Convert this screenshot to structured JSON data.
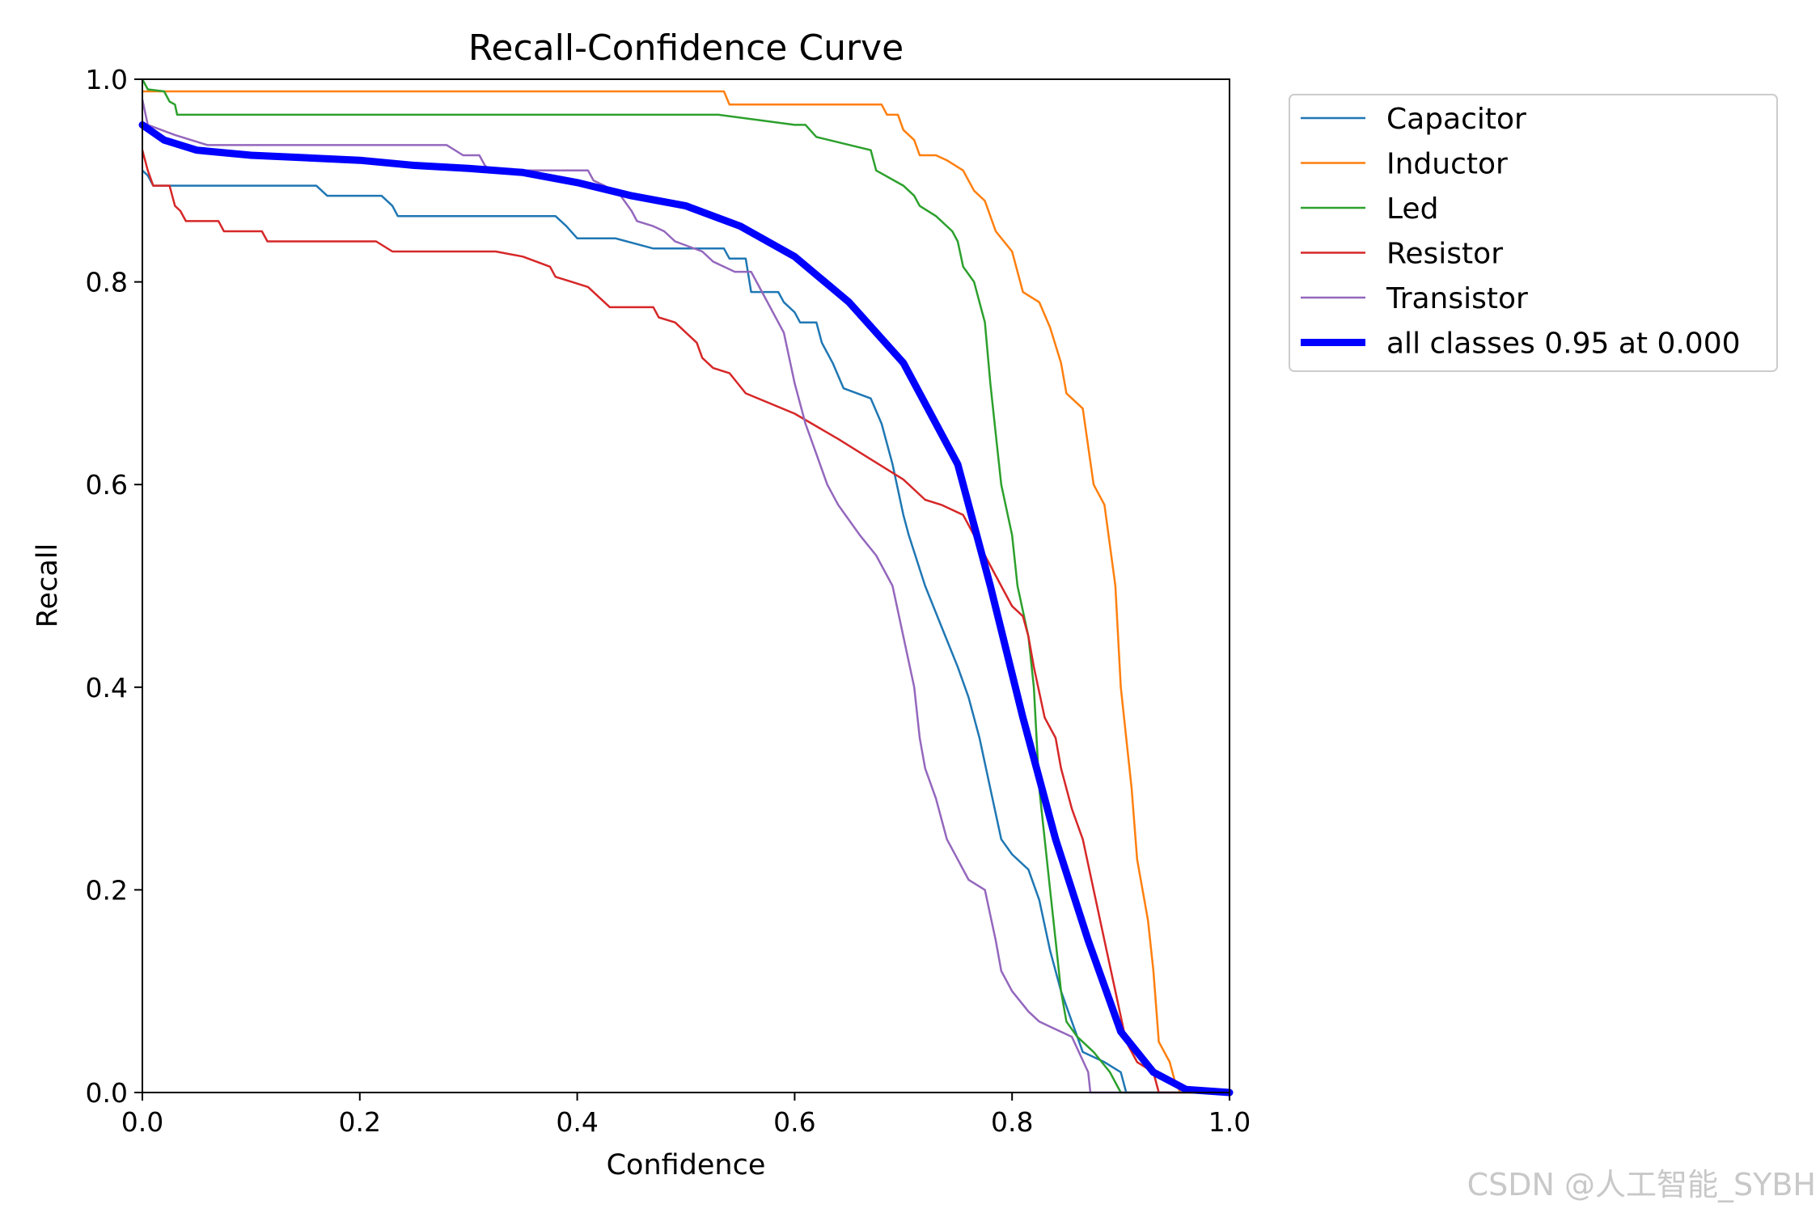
{
  "chart_data": {
    "type": "line",
    "title": "Recall-Confidence Curve",
    "xlabel": "Confidence",
    "ylabel": "Recall",
    "xlim": [
      0.0,
      1.0
    ],
    "ylim": [
      0.0,
      1.0
    ],
    "xticks": [
      "0.0",
      "0.2",
      "0.4",
      "0.6",
      "0.8",
      "1.0"
    ],
    "yticks": [
      "0.0",
      "0.2",
      "0.4",
      "0.6",
      "0.8",
      "1.0"
    ],
    "grid": false,
    "legend_position": "outside-top-right",
    "series": [
      {
        "name": "Capacitor",
        "color": "#1f77b4",
        "points": [
          [
            0,
            0.91
          ],
          [
            0.005,
            0.905
          ],
          [
            0.01,
            0.895
          ],
          [
            0.05,
            0.895
          ],
          [
            0.16,
            0.895
          ],
          [
            0.17,
            0.885
          ],
          [
            0.22,
            0.885
          ],
          [
            0.23,
            0.875
          ],
          [
            0.235,
            0.865
          ],
          [
            0.38,
            0.865
          ],
          [
            0.39,
            0.855
          ],
          [
            0.4,
            0.843
          ],
          [
            0.435,
            0.843
          ],
          [
            0.47,
            0.833
          ],
          [
            0.535,
            0.833
          ],
          [
            0.54,
            0.823
          ],
          [
            0.555,
            0.823
          ],
          [
            0.56,
            0.79
          ],
          [
            0.585,
            0.79
          ],
          [
            0.59,
            0.78
          ],
          [
            0.6,
            0.77
          ],
          [
            0.605,
            0.76
          ],
          [
            0.62,
            0.76
          ],
          [
            0.625,
            0.74
          ],
          [
            0.635,
            0.72
          ],
          [
            0.645,
            0.695
          ],
          [
            0.67,
            0.685
          ],
          [
            0.68,
            0.66
          ],
          [
            0.69,
            0.62
          ],
          [
            0.7,
            0.57
          ],
          [
            0.705,
            0.55
          ],
          [
            0.72,
            0.5
          ],
          [
            0.735,
            0.46
          ],
          [
            0.75,
            0.42
          ],
          [
            0.76,
            0.39
          ],
          [
            0.77,
            0.35
          ],
          [
            0.78,
            0.3
          ],
          [
            0.79,
            0.25
          ],
          [
            0.8,
            0.235
          ],
          [
            0.815,
            0.22
          ],
          [
            0.825,
            0.19
          ],
          [
            0.835,
            0.14
          ],
          [
            0.845,
            0.1
          ],
          [
            0.855,
            0.07
          ],
          [
            0.865,
            0.04
          ],
          [
            0.885,
            0.03
          ],
          [
            0.9,
            0.02
          ],
          [
            0.905,
            0.0
          ],
          [
            1.0,
            0.0
          ]
        ]
      },
      {
        "name": "Inductor",
        "color": "#ff7f0e",
        "points": [
          [
            0,
            0.988
          ],
          [
            0.535,
            0.988
          ],
          [
            0.54,
            0.975
          ],
          [
            0.68,
            0.975
          ],
          [
            0.685,
            0.965
          ],
          [
            0.695,
            0.965
          ],
          [
            0.7,
            0.95
          ],
          [
            0.71,
            0.94
          ],
          [
            0.715,
            0.925
          ],
          [
            0.73,
            0.925
          ],
          [
            0.74,
            0.92
          ],
          [
            0.755,
            0.91
          ],
          [
            0.76,
            0.9
          ],
          [
            0.765,
            0.89
          ],
          [
            0.775,
            0.88
          ],
          [
            0.785,
            0.85
          ],
          [
            0.8,
            0.83
          ],
          [
            0.81,
            0.79
          ],
          [
            0.825,
            0.78
          ],
          [
            0.835,
            0.755
          ],
          [
            0.845,
            0.72
          ],
          [
            0.85,
            0.69
          ],
          [
            0.865,
            0.675
          ],
          [
            0.875,
            0.6
          ],
          [
            0.885,
            0.58
          ],
          [
            0.895,
            0.5
          ],
          [
            0.9,
            0.4
          ],
          [
            0.91,
            0.3
          ],
          [
            0.915,
            0.23
          ],
          [
            0.925,
            0.17
          ],
          [
            0.93,
            0.12
          ],
          [
            0.935,
            0.05
          ],
          [
            0.945,
            0.03
          ],
          [
            0.95,
            0.01
          ],
          [
            0.955,
            0.0
          ],
          [
            1.0,
            0.0
          ]
        ]
      },
      {
        "name": "Led",
        "color": "#2ca02c",
        "points": [
          [
            0,
            1.0
          ],
          [
            0.005,
            0.99
          ],
          [
            0.02,
            0.988
          ],
          [
            0.025,
            0.978
          ],
          [
            0.03,
            0.975
          ],
          [
            0.032,
            0.965
          ],
          [
            0.53,
            0.965
          ],
          [
            0.6,
            0.955
          ],
          [
            0.61,
            0.955
          ],
          [
            0.62,
            0.943
          ],
          [
            0.67,
            0.93
          ],
          [
            0.675,
            0.91
          ],
          [
            0.7,
            0.895
          ],
          [
            0.71,
            0.885
          ],
          [
            0.715,
            0.875
          ],
          [
            0.73,
            0.865
          ],
          [
            0.745,
            0.85
          ],
          [
            0.75,
            0.84
          ],
          [
            0.755,
            0.815
          ],
          [
            0.765,
            0.8
          ],
          [
            0.77,
            0.78
          ],
          [
            0.775,
            0.76
          ],
          [
            0.78,
            0.7
          ],
          [
            0.785,
            0.65
          ],
          [
            0.79,
            0.6
          ],
          [
            0.8,
            0.55
          ],
          [
            0.805,
            0.5
          ],
          [
            0.815,
            0.45
          ],
          [
            0.82,
            0.4
          ],
          [
            0.825,
            0.3
          ],
          [
            0.83,
            0.25
          ],
          [
            0.835,
            0.2
          ],
          [
            0.84,
            0.15
          ],
          [
            0.845,
            0.1
          ],
          [
            0.85,
            0.07
          ],
          [
            0.86,
            0.055
          ],
          [
            0.875,
            0.04
          ],
          [
            0.89,
            0.02
          ],
          [
            0.895,
            0.01
          ],
          [
            0.9,
            0.0
          ],
          [
            1.0,
            0.0
          ]
        ]
      },
      {
        "name": "Resistor",
        "color": "#d62728",
        "points": [
          [
            0,
            0.93
          ],
          [
            0.005,
            0.91
          ],
          [
            0.01,
            0.895
          ],
          [
            0.025,
            0.895
          ],
          [
            0.03,
            0.875
          ],
          [
            0.035,
            0.87
          ],
          [
            0.04,
            0.86
          ],
          [
            0.07,
            0.86
          ],
          [
            0.075,
            0.85
          ],
          [
            0.11,
            0.85
          ],
          [
            0.115,
            0.84
          ],
          [
            0.215,
            0.84
          ],
          [
            0.23,
            0.83
          ],
          [
            0.325,
            0.83
          ],
          [
            0.35,
            0.825
          ],
          [
            0.375,
            0.815
          ],
          [
            0.38,
            0.805
          ],
          [
            0.395,
            0.8
          ],
          [
            0.41,
            0.795
          ],
          [
            0.43,
            0.775
          ],
          [
            0.47,
            0.775
          ],
          [
            0.475,
            0.765
          ],
          [
            0.49,
            0.76
          ],
          [
            0.5,
            0.75
          ],
          [
            0.51,
            0.74
          ],
          [
            0.515,
            0.725
          ],
          [
            0.525,
            0.715
          ],
          [
            0.54,
            0.71
          ],
          [
            0.555,
            0.69
          ],
          [
            0.6,
            0.67
          ],
          [
            0.64,
            0.645
          ],
          [
            0.67,
            0.625
          ],
          [
            0.7,
            0.605
          ],
          [
            0.72,
            0.585
          ],
          [
            0.735,
            0.58
          ],
          [
            0.755,
            0.57
          ],
          [
            0.78,
            0.52
          ],
          [
            0.8,
            0.48
          ],
          [
            0.81,
            0.47
          ],
          [
            0.815,
            0.45
          ],
          [
            0.82,
            0.42
          ],
          [
            0.83,
            0.37
          ],
          [
            0.84,
            0.35
          ],
          [
            0.845,
            0.32
          ],
          [
            0.855,
            0.28
          ],
          [
            0.865,
            0.25
          ],
          [
            0.875,
            0.2
          ],
          [
            0.885,
            0.15
          ],
          [
            0.895,
            0.1
          ],
          [
            0.905,
            0.05
          ],
          [
            0.915,
            0.03
          ],
          [
            0.93,
            0.02
          ],
          [
            0.935,
            0.0
          ],
          [
            1.0,
            0.0
          ]
        ]
      },
      {
        "name": "Transistor",
        "color": "#9467bd",
        "points": [
          [
            0,
            0.98
          ],
          [
            0.005,
            0.955
          ],
          [
            0.03,
            0.945
          ],
          [
            0.06,
            0.935
          ],
          [
            0.28,
            0.935
          ],
          [
            0.295,
            0.925
          ],
          [
            0.31,
            0.925
          ],
          [
            0.315,
            0.915
          ],
          [
            0.32,
            0.91
          ],
          [
            0.41,
            0.91
          ],
          [
            0.415,
            0.9
          ],
          [
            0.425,
            0.895
          ],
          [
            0.44,
            0.885
          ],
          [
            0.45,
            0.87
          ],
          [
            0.455,
            0.86
          ],
          [
            0.47,
            0.855
          ],
          [
            0.48,
            0.85
          ],
          [
            0.49,
            0.84
          ],
          [
            0.515,
            0.83
          ],
          [
            0.525,
            0.82
          ],
          [
            0.545,
            0.81
          ],
          [
            0.56,
            0.81
          ],
          [
            0.57,
            0.79
          ],
          [
            0.58,
            0.77
          ],
          [
            0.59,
            0.75
          ],
          [
            0.6,
            0.7
          ],
          [
            0.61,
            0.66
          ],
          [
            0.62,
            0.63
          ],
          [
            0.63,
            0.6
          ],
          [
            0.64,
            0.58
          ],
          [
            0.66,
            0.55
          ],
          [
            0.675,
            0.53
          ],
          [
            0.69,
            0.5
          ],
          [
            0.7,
            0.45
          ],
          [
            0.71,
            0.4
          ],
          [
            0.715,
            0.35
          ],
          [
            0.72,
            0.32
          ],
          [
            0.73,
            0.29
          ],
          [
            0.74,
            0.25
          ],
          [
            0.75,
            0.23
          ],
          [
            0.76,
            0.21
          ],
          [
            0.775,
            0.2
          ],
          [
            0.785,
            0.15
          ],
          [
            0.79,
            0.12
          ],
          [
            0.8,
            0.1
          ],
          [
            0.815,
            0.08
          ],
          [
            0.825,
            0.07
          ],
          [
            0.835,
            0.065
          ],
          [
            0.855,
            0.055
          ],
          [
            0.87,
            0.02
          ],
          [
            0.872,
            0.0
          ],
          [
            1.0,
            0.0
          ]
        ]
      },
      {
        "name": "all classes 0.95 at 0.000",
        "color": "#0000ff",
        "bold": true,
        "points": [
          [
            0,
            0.955
          ],
          [
            0.02,
            0.94
          ],
          [
            0.05,
            0.93
          ],
          [
            0.1,
            0.925
          ],
          [
            0.2,
            0.92
          ],
          [
            0.25,
            0.915
          ],
          [
            0.3,
            0.912
          ],
          [
            0.35,
            0.908
          ],
          [
            0.4,
            0.898
          ],
          [
            0.45,
            0.885
          ],
          [
            0.5,
            0.875
          ],
          [
            0.55,
            0.855
          ],
          [
            0.6,
            0.825
          ],
          [
            0.65,
            0.78
          ],
          [
            0.7,
            0.72
          ],
          [
            0.75,
            0.62
          ],
          [
            0.78,
            0.5
          ],
          [
            0.81,
            0.37
          ],
          [
            0.84,
            0.25
          ],
          [
            0.87,
            0.15
          ],
          [
            0.9,
            0.06
          ],
          [
            0.93,
            0.02
          ],
          [
            0.96,
            0.003
          ],
          [
            1.0,
            0.0
          ]
        ]
      }
    ]
  },
  "watermark": "CSDN @人工智能_SYBH"
}
